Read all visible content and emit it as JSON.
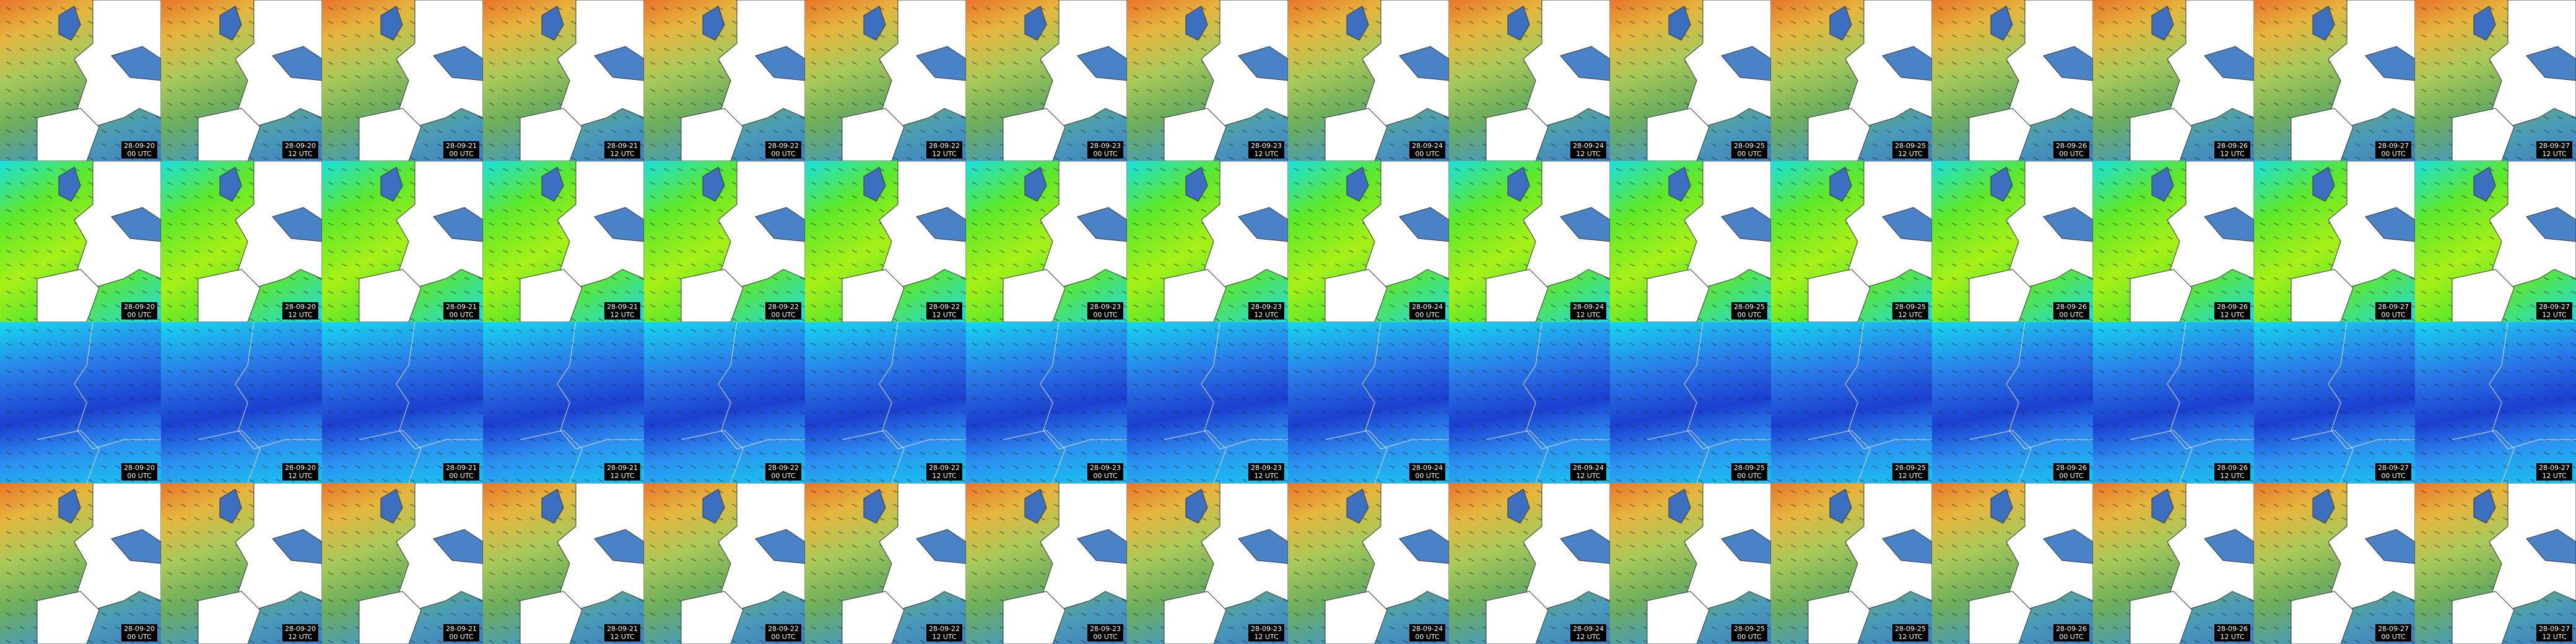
{
  "rows": [
    {
      "tiles": [
        {
          "date": "28-09-20",
          "time": "00 UTC"
        },
        {
          "date": "28-09-20",
          "time": "12 UTC"
        },
        {
          "date": "28-09-21",
          "time": "00 UTC"
        },
        {
          "date": "28-09-21",
          "time": "12 UTC"
        },
        {
          "date": "28-09-22",
          "time": "00 UTC"
        },
        {
          "date": "28-09-22",
          "time": "12 UTC"
        },
        {
          "date": "28-09-23",
          "time": "00 UTC"
        },
        {
          "date": "28-09-23",
          "time": "12 UTC"
        },
        {
          "date": "28-09-24",
          "time": "00 UTC"
        },
        {
          "date": "28-09-24",
          "time": "12 UTC"
        },
        {
          "date": "28-09-25",
          "time": "00 UTC"
        },
        {
          "date": "28-09-25",
          "time": "12 UTC"
        },
        {
          "date": "28-09-26",
          "time": "00 UTC"
        },
        {
          "date": "28-09-26",
          "time": "12 UTC"
        },
        {
          "date": "28-09-27",
          "time": "00 UTC"
        },
        {
          "date": "28-09-27",
          "time": "12 UTC"
        }
      ]
    },
    {
      "tiles": [
        {
          "date": "28-09-20",
          "time": "00 UTC"
        },
        {
          "date": "28-09-20",
          "time": "12 UTC"
        },
        {
          "date": "28-09-21",
          "time": "00 UTC"
        },
        {
          "date": "28-09-21",
          "time": "12 UTC"
        },
        {
          "date": "28-09-22",
          "time": "00 UTC"
        },
        {
          "date": "28-09-22",
          "time": "12 UTC"
        },
        {
          "date": "28-09-23",
          "time": "00 UTC"
        },
        {
          "date": "28-09-23",
          "time": "12 UTC"
        },
        {
          "date": "28-09-24",
          "time": "00 UTC"
        },
        {
          "date": "28-09-24",
          "time": "12 UTC"
        },
        {
          "date": "28-09-25",
          "time": "00 UTC"
        },
        {
          "date": "28-09-25",
          "time": "12 UTC"
        },
        {
          "date": "28-09-26",
          "time": "00 UTC"
        },
        {
          "date": "28-09-26",
          "time": "12 UTC"
        },
        {
          "date": "28-09-27",
          "time": "00 UTC"
        },
        {
          "date": "28-09-27",
          "time": "12 UTC"
        }
      ]
    },
    {
      "tiles": [
        {
          "date": "28-09-20",
          "time": "00 UTC"
        },
        {
          "date": "28-09-20",
          "time": "12 UTC"
        },
        {
          "date": "28-09-21",
          "time": "00 UTC"
        },
        {
          "date": "28-09-21",
          "time": "12 UTC"
        },
        {
          "date": "28-09-22",
          "time": "00 UTC"
        },
        {
          "date": "28-09-22",
          "time": "12 UTC"
        },
        {
          "date": "28-09-23",
          "time": "00 UTC"
        },
        {
          "date": "28-09-23",
          "time": "12 UTC"
        },
        {
          "date": "28-09-24",
          "time": "00 UTC"
        },
        {
          "date": "28-09-24",
          "time": "12 UTC"
        },
        {
          "date": "28-09-25",
          "time": "00 UTC"
        },
        {
          "date": "28-09-25",
          "time": "12 UTC"
        },
        {
          "date": "28-09-26",
          "time": "00 UTC"
        },
        {
          "date": "28-09-26",
          "time": "12 UTC"
        },
        {
          "date": "28-09-27",
          "time": "00 UTC"
        },
        {
          "date": "28-09-27",
          "time": "12 UTC"
        }
      ]
    },
    {
      "tiles": [
        {
          "date": "28-09-20",
          "time": "00 UTC"
        },
        {
          "date": "28-09-20",
          "time": "12 UTC"
        },
        {
          "date": "28-09-21",
          "time": "00 UTC"
        },
        {
          "date": "28-09-21",
          "time": "12 UTC"
        },
        {
          "date": "28-09-22",
          "time": "00 UTC"
        },
        {
          "date": "28-09-22",
          "time": "12 UTC"
        },
        {
          "date": "28-09-23",
          "time": "00 UTC"
        },
        {
          "date": "28-09-23",
          "time": "12 UTC"
        },
        {
          "date": "28-09-24",
          "time": "00 UTC"
        },
        {
          "date": "28-09-24",
          "time": "12 UTC"
        },
        {
          "date": "28-09-25",
          "time": "00 UTC"
        },
        {
          "date": "28-09-25",
          "time": "12 UTC"
        },
        {
          "date": "28-09-26",
          "time": "00 UTC"
        },
        {
          "date": "28-09-26",
          "time": "12 UTC"
        },
        {
          "date": "28-09-27",
          "time": "00 UTC"
        },
        {
          "date": "28-09-27",
          "time": "12 UTC"
        }
      ]
    }
  ]
}
